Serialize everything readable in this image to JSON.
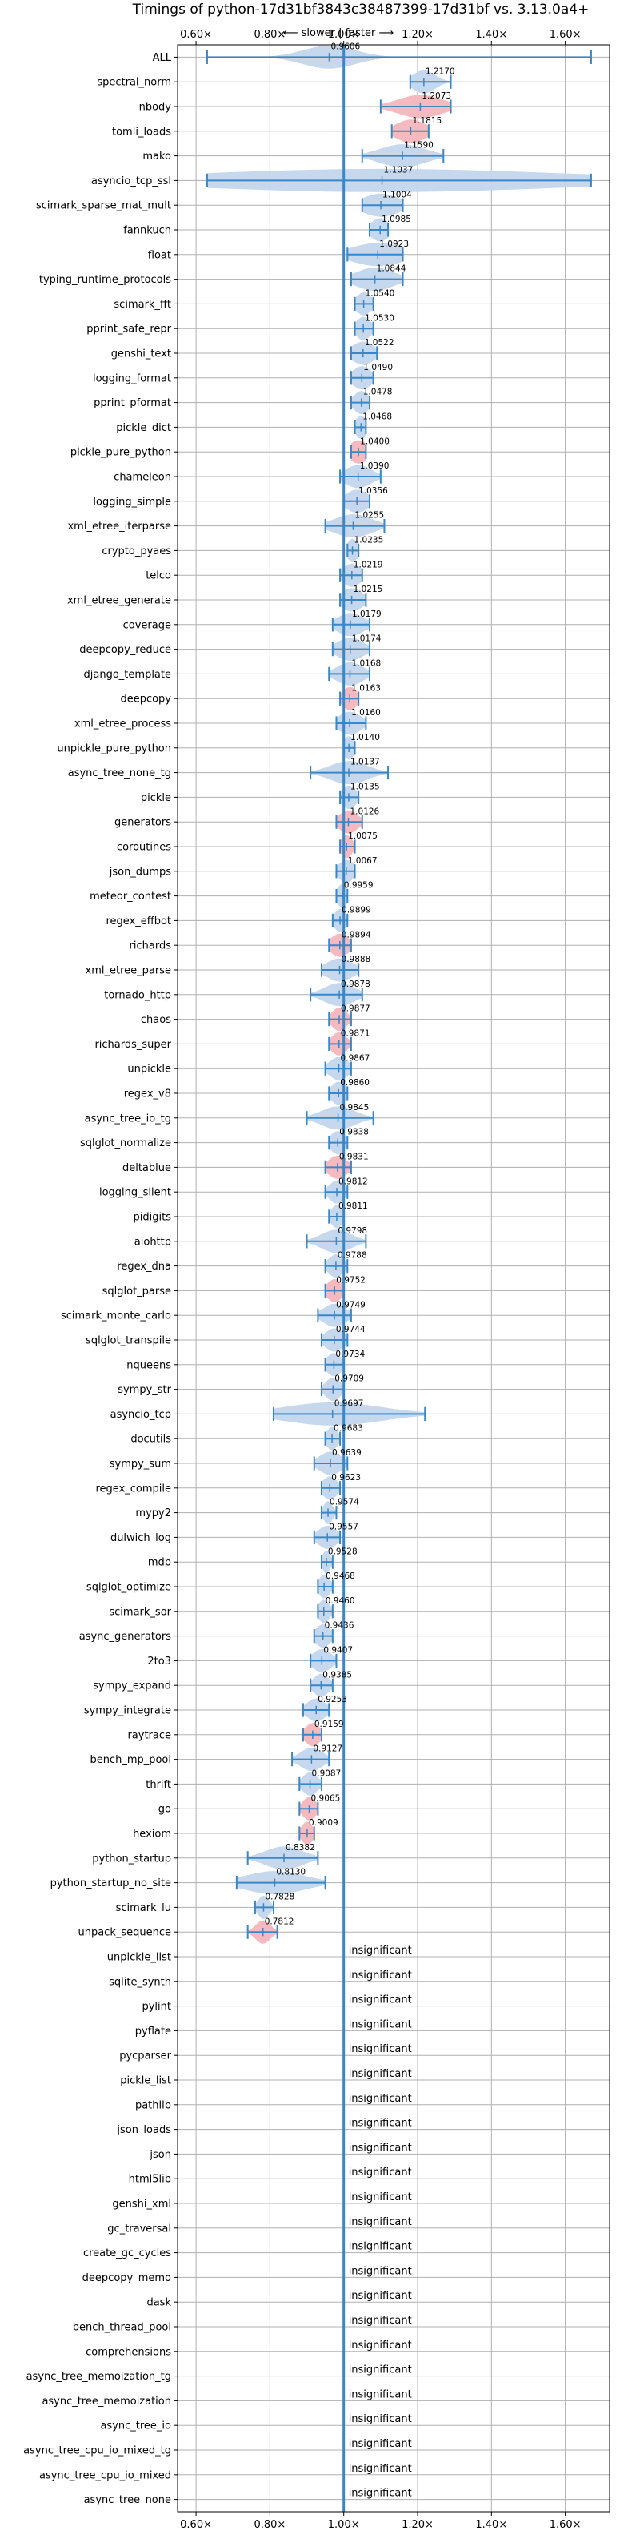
{
  "chart_data": {
    "type": "violin",
    "title": "Timings of python-17d31bf3843c38487399-17d31bf vs. 3.13.0a4+",
    "subtitle": "⟵ slower | faster ⟶",
    "xlim": [
      0.55,
      1.72
    ],
    "x_ticks": [
      0.6,
      0.8,
      1.0,
      1.2,
      1.4,
      1.6
    ],
    "x_tick_labels": [
      "0.60×",
      "0.80×",
      "1.00×",
      "1.20×",
      "1.40×",
      "1.60×"
    ],
    "reference_line": 1.0,
    "grid": true,
    "colors": {
      "neutral": "#c2d6ec",
      "significant_slower": "#f4b6bd",
      "line": "#3a87c8",
      "grid": "#b0b0b0"
    },
    "insignificant_text": "insignificant",
    "benchmarks": [
      {
        "name": "ALL",
        "value": 0.9606,
        "label": "0.9606",
        "min": 0.63,
        "max": 1.67,
        "spread": 0.07,
        "significant": false
      },
      {
        "name": "spectral_norm",
        "value": 1.217,
        "label": "1.2170",
        "min": 1.18,
        "max": 1.29,
        "spread": 0.03,
        "significant": false
      },
      {
        "name": "nbody",
        "value": 1.2073,
        "label": "1.2073",
        "min": 1.1,
        "max": 1.29,
        "spread": 0.06,
        "significant": true
      },
      {
        "name": "tomli_loads",
        "value": 1.1815,
        "label": "1.1815",
        "min": 1.13,
        "max": 1.23,
        "spread": 0.04,
        "significant": true
      },
      {
        "name": "mako",
        "value": 1.159,
        "label": "1.1590",
        "min": 1.05,
        "max": 1.27,
        "spread": 0.06,
        "significant": false
      },
      {
        "name": "asyncio_tcp_ssl",
        "value": 1.1037,
        "label": "1.1037",
        "min": 0.63,
        "max": 1.67,
        "spread": 0.5,
        "significant": false
      },
      {
        "name": "scimark_sparse_mat_mult",
        "value": 1.1004,
        "label": "1.1004",
        "min": 1.05,
        "max": 1.16,
        "spread": 0.05,
        "significant": false
      },
      {
        "name": "fannkuch",
        "value": 1.0985,
        "label": "1.0985",
        "min": 1.07,
        "max": 1.12,
        "spread": 0.025,
        "significant": false
      },
      {
        "name": "float",
        "value": 1.0923,
        "label": "1.0923",
        "min": 1.01,
        "max": 1.16,
        "spread": 0.07,
        "significant": false
      },
      {
        "name": "typing_runtime_protocols",
        "value": 1.0844,
        "label": "1.0844",
        "min": 1.02,
        "max": 1.16,
        "spread": 0.05,
        "significant": false
      },
      {
        "name": "scimark_fft",
        "value": 1.054,
        "label": "1.0540",
        "min": 1.03,
        "max": 1.08,
        "spread": 0.02,
        "significant": false
      },
      {
        "name": "pprint_safe_repr",
        "value": 1.053,
        "label": "1.0530",
        "min": 1.03,
        "max": 1.08,
        "spread": 0.02,
        "significant": false
      },
      {
        "name": "genshi_text",
        "value": 1.0522,
        "label": "1.0522",
        "min": 1.02,
        "max": 1.09,
        "spread": 0.03,
        "significant": false
      },
      {
        "name": "logging_format",
        "value": 1.049,
        "label": "1.0490",
        "min": 1.02,
        "max": 1.08,
        "spread": 0.025,
        "significant": false
      },
      {
        "name": "pprint_pformat",
        "value": 1.0478,
        "label": "1.0478",
        "min": 1.02,
        "max": 1.07,
        "spread": 0.02,
        "significant": false
      },
      {
        "name": "pickle_dict",
        "value": 1.0468,
        "label": "1.0468",
        "min": 1.03,
        "max": 1.06,
        "spread": 0.015,
        "significant": false
      },
      {
        "name": "pickle_pure_python",
        "value": 1.04,
        "label": "1.0400",
        "min": 1.02,
        "max": 1.06,
        "spread": 0.025,
        "significant": true
      },
      {
        "name": "chameleon",
        "value": 1.039,
        "label": "1.0390",
        "min": 0.99,
        "max": 1.1,
        "spread": 0.035,
        "significant": false
      },
      {
        "name": "logging_simple",
        "value": 1.0356,
        "label": "1.0356",
        "min": 1.0,
        "max": 1.07,
        "spread": 0.03,
        "significant": false
      },
      {
        "name": "xml_etree_iterparse",
        "value": 1.0255,
        "label": "1.0255",
        "min": 0.95,
        "max": 1.11,
        "spread": 0.05,
        "significant": false
      },
      {
        "name": "crypto_pyaes",
        "value": 1.0235,
        "label": "1.0235",
        "min": 1.01,
        "max": 1.04,
        "spread": 0.015,
        "significant": false
      },
      {
        "name": "telco",
        "value": 1.0219,
        "label": "1.0219",
        "min": 0.99,
        "max": 1.05,
        "spread": 0.025,
        "significant": false
      },
      {
        "name": "xml_etree_generate",
        "value": 1.0215,
        "label": "1.0215",
        "min": 0.99,
        "max": 1.06,
        "spread": 0.03,
        "significant": false
      },
      {
        "name": "coverage",
        "value": 1.0179,
        "label": "1.0179",
        "min": 0.97,
        "max": 1.07,
        "spread": 0.035,
        "significant": false
      },
      {
        "name": "deepcopy_reduce",
        "value": 1.0174,
        "label": "1.0174",
        "min": 0.97,
        "max": 1.07,
        "spread": 0.035,
        "significant": false
      },
      {
        "name": "django_template",
        "value": 1.0168,
        "label": "1.0168",
        "min": 0.96,
        "max": 1.07,
        "spread": 0.035,
        "significant": false
      },
      {
        "name": "deepcopy",
        "value": 1.0163,
        "label": "1.0163",
        "min": 0.99,
        "max": 1.04,
        "spread": 0.02,
        "significant": true
      },
      {
        "name": "xml_etree_process",
        "value": 1.016,
        "label": "1.0160",
        "min": 0.98,
        "max": 1.06,
        "spread": 0.03,
        "significant": false
      },
      {
        "name": "unpickle_pure_python",
        "value": 1.014,
        "label": "1.0140",
        "min": 1.0,
        "max": 1.03,
        "spread": 0.015,
        "significant": false
      },
      {
        "name": "async_tree_none_tg",
        "value": 1.0137,
        "label": "1.0137",
        "min": 0.91,
        "max": 1.12,
        "spread": 0.05,
        "significant": false
      },
      {
        "name": "pickle",
        "value": 1.0135,
        "label": "1.0135",
        "min": 0.99,
        "max": 1.04,
        "spread": 0.02,
        "significant": false
      },
      {
        "name": "generators",
        "value": 1.0126,
        "label": "1.0126",
        "min": 0.98,
        "max": 1.05,
        "spread": 0.025,
        "significant": true
      },
      {
        "name": "coroutines",
        "value": 1.0075,
        "label": "1.0075",
        "min": 0.99,
        "max": 1.03,
        "spread": 0.015,
        "significant": true
      },
      {
        "name": "json_dumps",
        "value": 1.0067,
        "label": "1.0067",
        "min": 0.98,
        "max": 1.03,
        "spread": 0.02,
        "significant": false
      },
      {
        "name": "meteor_contest",
        "value": 0.9959,
        "label": "0.9959",
        "min": 0.98,
        "max": 1.01,
        "spread": 0.015,
        "significant": false
      },
      {
        "name": "regex_effbot",
        "value": 0.9899,
        "label": "0.9899",
        "min": 0.97,
        "max": 1.01,
        "spread": 0.015,
        "significant": false
      },
      {
        "name": "richards",
        "value": 0.9894,
        "label": "0.9894",
        "min": 0.96,
        "max": 1.02,
        "spread": 0.025,
        "significant": true
      },
      {
        "name": "xml_etree_parse",
        "value": 0.9888,
        "label": "0.9888",
        "min": 0.94,
        "max": 1.04,
        "spread": 0.035,
        "significant": false
      },
      {
        "name": "tornado_http",
        "value": 0.9878,
        "label": "0.9878",
        "min": 0.91,
        "max": 1.05,
        "spread": 0.04,
        "significant": false
      },
      {
        "name": "chaos",
        "value": 0.9877,
        "label": "0.9877",
        "min": 0.96,
        "max": 1.02,
        "spread": 0.02,
        "significant": true
      },
      {
        "name": "richards_super",
        "value": 0.9871,
        "label": "0.9871",
        "min": 0.96,
        "max": 1.02,
        "spread": 0.02,
        "significant": true
      },
      {
        "name": "unpickle",
        "value": 0.9867,
        "label": "0.9867",
        "min": 0.95,
        "max": 1.02,
        "spread": 0.025,
        "significant": false
      },
      {
        "name": "regex_v8",
        "value": 0.986,
        "label": "0.9860",
        "min": 0.96,
        "max": 1.01,
        "spread": 0.02,
        "significant": false
      },
      {
        "name": "async_tree_io_tg",
        "value": 0.9845,
        "label": "0.9845",
        "min": 0.9,
        "max": 1.08,
        "spread": 0.045,
        "significant": false
      },
      {
        "name": "sqlglot_normalize",
        "value": 0.9838,
        "label": "0.9838",
        "min": 0.96,
        "max": 1.01,
        "spread": 0.02,
        "significant": false
      },
      {
        "name": "deltablue",
        "value": 0.9831,
        "label": "0.9831",
        "min": 0.95,
        "max": 1.02,
        "spread": 0.025,
        "significant": true
      },
      {
        "name": "logging_silent",
        "value": 0.9812,
        "label": "0.9812",
        "min": 0.95,
        "max": 1.01,
        "spread": 0.02,
        "significant": false
      },
      {
        "name": "pidigits",
        "value": 0.9811,
        "label": "0.9811",
        "min": 0.96,
        "max": 1.0,
        "spread": 0.015,
        "significant": false
      },
      {
        "name": "aiohttp",
        "value": 0.9798,
        "label": "0.9798",
        "min": 0.9,
        "max": 1.06,
        "spread": 0.04,
        "significant": false
      },
      {
        "name": "regex_dna",
        "value": 0.9788,
        "label": "0.9788",
        "min": 0.95,
        "max": 1.01,
        "spread": 0.02,
        "significant": false
      },
      {
        "name": "sqlglot_parse",
        "value": 0.9752,
        "label": "0.9752",
        "min": 0.95,
        "max": 1.0,
        "spread": 0.02,
        "significant": true
      },
      {
        "name": "scimark_monte_carlo",
        "value": 0.9749,
        "label": "0.9749",
        "min": 0.93,
        "max": 1.02,
        "spread": 0.03,
        "significant": false
      },
      {
        "name": "sqlglot_transpile",
        "value": 0.9744,
        "label": "0.9744",
        "min": 0.94,
        "max": 1.01,
        "spread": 0.025,
        "significant": false
      },
      {
        "name": "nqueens",
        "value": 0.9734,
        "label": "0.9734",
        "min": 0.95,
        "max": 1.0,
        "spread": 0.02,
        "significant": false
      },
      {
        "name": "sympy_str",
        "value": 0.9709,
        "label": "0.9709",
        "min": 0.94,
        "max": 1.0,
        "spread": 0.02,
        "significant": false
      },
      {
        "name": "asyncio_tcp",
        "value": 0.9697,
        "label": "0.9697",
        "min": 0.81,
        "max": 1.22,
        "spread": 0.13,
        "significant": false
      },
      {
        "name": "docutils",
        "value": 0.9683,
        "label": "0.9683",
        "min": 0.95,
        "max": 0.99,
        "spread": 0.015,
        "significant": false
      },
      {
        "name": "sympy_sum",
        "value": 0.9639,
        "label": "0.9639",
        "min": 0.92,
        "max": 1.01,
        "spread": 0.03,
        "significant": false
      },
      {
        "name": "regex_compile",
        "value": 0.9623,
        "label": "0.9623",
        "min": 0.94,
        "max": 0.99,
        "spread": 0.02,
        "significant": false
      },
      {
        "name": "mypy2",
        "value": 0.9574,
        "label": "0.9574",
        "min": 0.94,
        "max": 0.98,
        "spread": 0.012,
        "significant": false
      },
      {
        "name": "dulwich_log",
        "value": 0.9557,
        "label": "0.9557",
        "min": 0.92,
        "max": 0.99,
        "spread": 0.025,
        "significant": false
      },
      {
        "name": "mdp",
        "value": 0.9528,
        "label": "0.9528",
        "min": 0.94,
        "max": 0.97,
        "spread": 0.01,
        "significant": false
      },
      {
        "name": "sqlglot_optimize",
        "value": 0.9468,
        "label": "0.9468",
        "min": 0.93,
        "max": 0.97,
        "spread": 0.015,
        "significant": false
      },
      {
        "name": "scimark_sor",
        "value": 0.946,
        "label": "0.9460",
        "min": 0.93,
        "max": 0.97,
        "spread": 0.015,
        "significant": false
      },
      {
        "name": "async_generators",
        "value": 0.9436,
        "label": "0.9436",
        "min": 0.92,
        "max": 0.97,
        "spread": 0.02,
        "significant": false
      },
      {
        "name": "2to3",
        "value": 0.9407,
        "label": "0.9407",
        "min": 0.91,
        "max": 0.98,
        "spread": 0.025,
        "significant": false
      },
      {
        "name": "sympy_expand",
        "value": 0.9385,
        "label": "0.9385",
        "min": 0.91,
        "max": 0.97,
        "spread": 0.02,
        "significant": false
      },
      {
        "name": "sympy_integrate",
        "value": 0.9253,
        "label": "0.9253",
        "min": 0.89,
        "max": 0.96,
        "spread": 0.025,
        "significant": false
      },
      {
        "name": "raytrace",
        "value": 0.9159,
        "label": "0.9159",
        "min": 0.89,
        "max": 0.94,
        "spread": 0.02,
        "significant": true
      },
      {
        "name": "bench_mp_pool",
        "value": 0.9127,
        "label": "0.9127",
        "min": 0.86,
        "max": 0.96,
        "spread": 0.03,
        "significant": false
      },
      {
        "name": "thrift",
        "value": 0.9087,
        "label": "0.9087",
        "min": 0.88,
        "max": 0.94,
        "spread": 0.02,
        "significant": false
      },
      {
        "name": "go",
        "value": 0.9065,
        "label": "0.9065",
        "min": 0.88,
        "max": 0.93,
        "spread": 0.018,
        "significant": true
      },
      {
        "name": "hexiom",
        "value": 0.9009,
        "label": "0.9009",
        "min": 0.88,
        "max": 0.92,
        "spread": 0.015,
        "significant": true
      },
      {
        "name": "python_startup",
        "value": 0.8382,
        "label": "0.8382",
        "min": 0.74,
        "max": 0.93,
        "spread": 0.05,
        "significant": false
      },
      {
        "name": "python_startup_no_site",
        "value": 0.813,
        "label": "0.8130",
        "min": 0.71,
        "max": 0.95,
        "spread": 0.08,
        "significant": false
      },
      {
        "name": "scimark_lu",
        "value": 0.7828,
        "label": "0.7828",
        "min": 0.76,
        "max": 0.81,
        "spread": 0.015,
        "significant": false
      },
      {
        "name": "unpack_sequence",
        "value": 0.7812,
        "label": "0.7812",
        "min": 0.74,
        "max": 0.82,
        "spread": 0.02,
        "significant": true
      },
      {
        "name": "unpickle_list",
        "insignificant": true
      },
      {
        "name": "sqlite_synth",
        "insignificant": true
      },
      {
        "name": "pylint",
        "insignificant": true
      },
      {
        "name": "pyflate",
        "insignificant": true
      },
      {
        "name": "pycparser",
        "insignificant": true
      },
      {
        "name": "pickle_list",
        "insignificant": true
      },
      {
        "name": "pathlib",
        "insignificant": true
      },
      {
        "name": "json_loads",
        "insignificant": true
      },
      {
        "name": "json",
        "insignificant": true
      },
      {
        "name": "html5lib",
        "insignificant": true
      },
      {
        "name": "genshi_xml",
        "insignificant": true
      },
      {
        "name": "gc_traversal",
        "insignificant": true
      },
      {
        "name": "create_gc_cycles",
        "insignificant": true
      },
      {
        "name": "deepcopy_memo",
        "insignificant": true
      },
      {
        "name": "dask",
        "insignificant": true
      },
      {
        "name": "bench_thread_pool",
        "insignificant": true
      },
      {
        "name": "comprehensions",
        "insignificant": true
      },
      {
        "name": "async_tree_memoization_tg",
        "insignificant": true
      },
      {
        "name": "async_tree_memoization",
        "insignificant": true
      },
      {
        "name": "async_tree_io",
        "insignificant": true
      },
      {
        "name": "async_tree_cpu_io_mixed_tg",
        "insignificant": true
      },
      {
        "name": "async_tree_cpu_io_mixed",
        "insignificant": true
      },
      {
        "name": "async_tree_none",
        "insignificant": true
      }
    ]
  }
}
